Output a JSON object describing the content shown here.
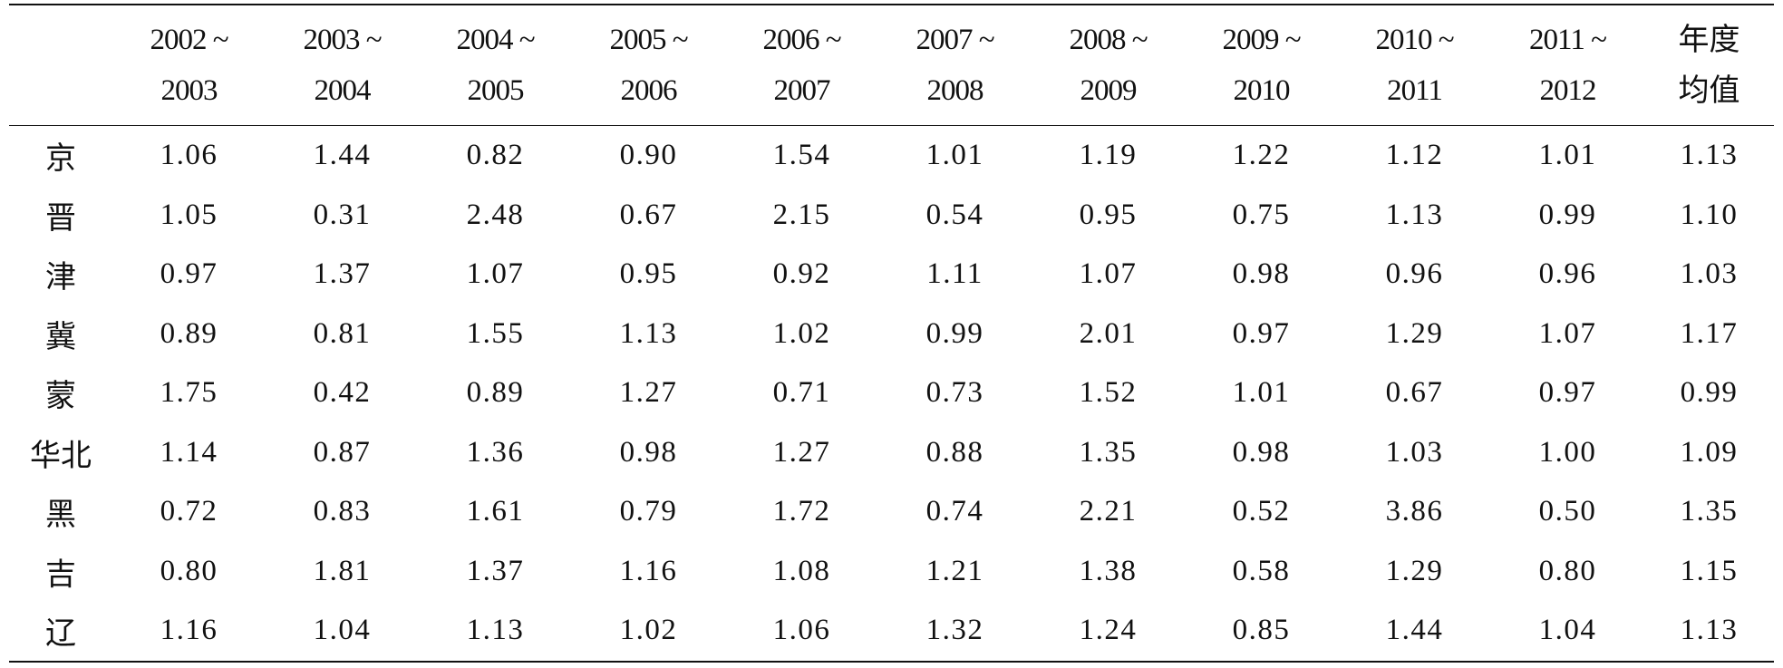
{
  "table": {
    "header": {
      "corner": "",
      "periods": [
        {
          "line1": "2002 ~",
          "line2": "2003"
        },
        {
          "line1": "2003 ~",
          "line2": "2004"
        },
        {
          "line1": "2004 ~",
          "line2": "2005"
        },
        {
          "line1": "2005 ~",
          "line2": "2006"
        },
        {
          "line1": "2006 ~",
          "line2": "2007"
        },
        {
          "line1": "2007 ~",
          "line2": "2008"
        },
        {
          "line1": "2008 ~",
          "line2": "2009"
        },
        {
          "line1": "2009 ~",
          "line2": "2010"
        },
        {
          "line1": "2010 ~",
          "line2": "2011"
        },
        {
          "line1": "2011 ~",
          "line2": "2012"
        }
      ],
      "average": {
        "line1": "年度",
        "line2": "均值"
      }
    },
    "rows": [
      {
        "region": "京",
        "values": [
          "1.06",
          "1.44",
          "0.82",
          "0.90",
          "1.54",
          "1.01",
          "1.19",
          "1.22",
          "1.12",
          "1.01",
          "1.13"
        ]
      },
      {
        "region": "晋",
        "values": [
          "1.05",
          "0.31",
          "2.48",
          "0.67",
          "2.15",
          "0.54",
          "0.95",
          "0.75",
          "1.13",
          "0.99",
          "1.10"
        ]
      },
      {
        "region": "津",
        "values": [
          "0.97",
          "1.37",
          "1.07",
          "0.95",
          "0.92",
          "1.11",
          "1.07",
          "0.98",
          "0.96",
          "0.96",
          "1.03"
        ]
      },
      {
        "region": "冀",
        "values": [
          "0.89",
          "0.81",
          "1.55",
          "1.13",
          "1.02",
          "0.99",
          "2.01",
          "0.97",
          "1.29",
          "1.07",
          "1.17"
        ]
      },
      {
        "region": "蒙",
        "values": [
          "1.75",
          "0.42",
          "0.89",
          "1.27",
          "0.71",
          "0.73",
          "1.52",
          "1.01",
          "0.67",
          "0.97",
          "0.99"
        ]
      },
      {
        "region": "华北",
        "values": [
          "1.14",
          "0.87",
          "1.36",
          "0.98",
          "1.27",
          "0.88",
          "1.35",
          "0.98",
          "1.03",
          "1.00",
          "1.09"
        ]
      },
      {
        "region": "黑",
        "values": [
          "0.72",
          "0.83",
          "1.61",
          "0.79",
          "1.72",
          "0.74",
          "2.21",
          "0.52",
          "3.86",
          "0.50",
          "1.35"
        ]
      },
      {
        "region": "吉",
        "values": [
          "0.80",
          "1.81",
          "1.37",
          "1.16",
          "1.08",
          "1.21",
          "1.38",
          "0.58",
          "1.29",
          "0.80",
          "1.15"
        ]
      },
      {
        "region": "辽",
        "values": [
          "1.16",
          "1.04",
          "1.13",
          "1.02",
          "1.06",
          "1.32",
          "1.24",
          "0.85",
          "1.44",
          "1.04",
          "1.13"
        ]
      }
    ]
  }
}
